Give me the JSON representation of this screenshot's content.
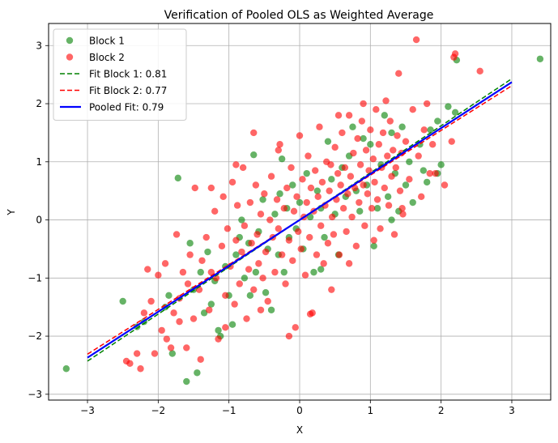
{
  "chart_data": {
    "type": "scatter",
    "title": "Verification of Pooled OLS as Weighted Average",
    "xlabel": "X",
    "ylabel": "Y",
    "xlim": [
      -3.55,
      3.55
    ],
    "ylim": [
      -3.1,
      3.38
    ],
    "xticks": [
      -3,
      -2,
      -1,
      0,
      1,
      2,
      3
    ],
    "yticks": [
      -3,
      -2,
      -1,
      0,
      1,
      2,
      3
    ],
    "grid": true,
    "legend_position": "top-left",
    "series": [
      {
        "name": "Block 1",
        "kind": "scatter",
        "color": "#008000",
        "points": [
          [
            -3.3,
            -2.56
          ],
          [
            -2.5,
            -1.4
          ],
          [
            -2.3,
            -1.84
          ],
          [
            -2.2,
            -1.75
          ],
          [
            -1.9,
            -1.5
          ],
          [
            -1.85,
            -1.3
          ],
          [
            -1.8,
            -2.3
          ],
          [
            -1.72,
            0.72
          ],
          [
            -1.6,
            -2.78
          ],
          [
            -1.45,
            -2.63
          ],
          [
            -1.5,
            -1.2
          ],
          [
            -1.4,
            -0.9
          ],
          [
            -1.35,
            -1.6
          ],
          [
            -1.3,
            -0.55
          ],
          [
            -1.25,
            -1.45
          ],
          [
            -1.2,
            -1.05
          ],
          [
            -1.15,
            -1.9
          ],
          [
            -1.12,
            -2.0
          ],
          [
            -1.05,
            -0.8
          ],
          [
            -1.0,
            -1.3
          ],
          [
            -0.95,
            -1.8
          ],
          [
            -0.9,
            -0.6
          ],
          [
            -0.85,
            -0.3
          ],
          [
            -0.82,
            0.0
          ],
          [
            -0.78,
            -1.0
          ],
          [
            -0.72,
            -0.4
          ],
          [
            -0.65,
            1.12
          ],
          [
            -0.62,
            -0.9
          ],
          [
            -0.58,
            -0.2
          ],
          [
            -0.52,
            0.35
          ],
          [
            -0.48,
            -1.25
          ],
          [
            -0.45,
            -0.5
          ],
          [
            -0.4,
            -1.55
          ],
          [
            -0.35,
            0.1
          ],
          [
            -0.3,
            -0.6
          ],
          [
            -0.28,
            0.45
          ],
          [
            -0.22,
            -0.9
          ],
          [
            -0.18,
            0.2
          ],
          [
            -0.15,
            -0.3
          ],
          [
            -0.1,
            0.6
          ],
          [
            -0.05,
            -0.15
          ],
          [
            0.0,
            0.3
          ],
          [
            0.05,
            -0.5
          ],
          [
            0.1,
            0.8
          ],
          [
            0.15,
            0.05
          ],
          [
            0.2,
            -0.9
          ],
          [
            0.25,
            0.5
          ],
          [
            0.3,
            0.2
          ],
          [
            0.35,
            -0.3
          ],
          [
            0.4,
            1.35
          ],
          [
            0.45,
            0.7
          ],
          [
            0.5,
            0.1
          ],
          [
            0.55,
            -0.6
          ],
          [
            0.6,
            0.9
          ],
          [
            0.65,
            0.4
          ],
          [
            0.7,
            1.1
          ],
          [
            0.75,
            1.6
          ],
          [
            0.8,
            0.5
          ],
          [
            0.85,
            0.15
          ],
          [
            0.9,
            1.4
          ],
          [
            0.95,
            0.6
          ],
          [
            1.0,
            1.3
          ],
          [
            1.05,
            -0.45
          ],
          [
            1.1,
            0.2
          ],
          [
            1.15,
            0.95
          ],
          [
            1.2,
            1.8
          ],
          [
            1.25,
            0.4
          ],
          [
            1.3,
            1.5
          ],
          [
            1.35,
            0.8
          ],
          [
            1.4,
            0.15
          ],
          [
            1.45,
            1.6
          ],
          [
            1.5,
            0.6
          ],
          [
            1.55,
            1.0
          ],
          [
            1.6,
            0.3
          ],
          [
            1.7,
            1.3
          ],
          [
            1.75,
            0.85
          ],
          [
            1.8,
            0.65
          ],
          [
            1.85,
            1.55
          ],
          [
            1.95,
            1.7
          ],
          [
            2.0,
            0.95
          ],
          [
            2.1,
            1.95
          ],
          [
            2.2,
            1.85
          ],
          [
            2.22,
            2.75
          ],
          [
            3.4,
            2.77
          ],
          [
            -1.55,
            -0.4
          ],
          [
            -0.7,
            -1.3
          ],
          [
            0.3,
            -0.85
          ],
          [
            1.3,
            0.0
          ],
          [
            -0.25,
            1.05
          ],
          [
            1.95,
            0.8
          ]
        ]
      },
      {
        "name": "Block 2",
        "kind": "scatter",
        "color": "#ff0000",
        "points": [
          [
            -2.45,
            -2.43
          ],
          [
            -2.4,
            -2.47
          ],
          [
            -2.3,
            -2.3
          ],
          [
            -2.25,
            -2.56
          ],
          [
            -2.2,
            -1.6
          ],
          [
            -2.15,
            -0.85
          ],
          [
            -2.1,
            -1.4
          ],
          [
            -2.05,
            -2.3
          ],
          [
            -1.95,
            -1.9
          ],
          [
            -1.9,
            -0.75
          ],
          [
            -1.88,
            -2.05
          ],
          [
            -1.82,
            -2.2
          ],
          [
            -1.78,
            -1.6
          ],
          [
            -1.74,
            -0.25
          ],
          [
            -1.7,
            -1.35
          ],
          [
            -1.65,
            -0.9
          ],
          [
            -1.6,
            -2.2
          ],
          [
            -1.58,
            -1.1
          ],
          [
            -1.55,
            -0.6
          ],
          [
            -1.5,
            -1.7
          ],
          [
            -1.48,
            0.55
          ],
          [
            -1.42,
            -1.2
          ],
          [
            -1.4,
            -2.4
          ],
          [
            -1.38,
            -0.7
          ],
          [
            -1.32,
            -0.3
          ],
          [
            -1.28,
            -1.55
          ],
          [
            -1.25,
            -0.9
          ],
          [
            -1.2,
            0.15
          ],
          [
            -1.18,
            -1.0
          ],
          [
            -1.15,
            -2.05
          ],
          [
            -1.1,
            -0.45
          ],
          [
            -1.08,
            0.4
          ],
          [
            -1.05,
            -1.3
          ],
          [
            -1.02,
            -0.15
          ],
          [
            -0.98,
            -0.8
          ],
          [
            -0.95,
            0.65
          ],
          [
            -0.92,
            -1.45
          ],
          [
            -0.9,
            -0.35
          ],
          [
            -0.88,
            0.25
          ],
          [
            -0.85,
            -1.1
          ],
          [
            -0.82,
            -0.55
          ],
          [
            -0.8,
            0.9
          ],
          [
            -0.78,
            -0.1
          ],
          [
            -0.75,
            -1.7
          ],
          [
            -0.72,
            -0.85
          ],
          [
            -0.7,
            0.3
          ],
          [
            -0.68,
            -0.4
          ],
          [
            -0.65,
            -1.2
          ],
          [
            -0.62,
            0.6
          ],
          [
            -0.6,
            -0.25
          ],
          [
            -0.58,
            -0.75
          ],
          [
            -0.55,
            0.1
          ],
          [
            -0.52,
            -1.0
          ],
          [
            -0.5,
            0.45
          ],
          [
            -0.48,
            -0.55
          ],
          [
            -0.45,
            -1.4
          ],
          [
            -0.42,
            0.0
          ],
          [
            -0.4,
            0.75
          ],
          [
            -0.38,
            -0.3
          ],
          [
            -0.35,
            -0.9
          ],
          [
            -0.32,
            0.35
          ],
          [
            -0.3,
            -0.15
          ],
          [
            -0.28,
            1.3
          ],
          [
            -0.25,
            -0.6
          ],
          [
            -0.22,
            0.2
          ],
          [
            -0.2,
            -1.1
          ],
          [
            -0.18,
            0.55
          ],
          [
            -0.15,
            -0.35
          ],
          [
            -0.12,
            0.9
          ],
          [
            -0.1,
            -0.7
          ],
          [
            -0.08,
            0.15
          ],
          [
            -0.06,
            -1.85
          ],
          [
            -0.04,
            0.4
          ],
          [
            -0.02,
            -0.2
          ],
          [
            0.0,
            1.45
          ],
          [
            0.02,
            -0.5
          ],
          [
            0.04,
            0.7
          ],
          [
            0.06,
            0.05
          ],
          [
            0.08,
            -0.95
          ],
          [
            0.1,
            0.3
          ],
          [
            0.12,
            1.1
          ],
          [
            0.14,
            -0.3
          ],
          [
            0.16,
            0.55
          ],
          [
            0.18,
            -1.6
          ],
          [
            0.2,
            0.15
          ],
          [
            0.22,
            0.85
          ],
          [
            0.24,
            -0.6
          ],
          [
            0.26,
            0.4
          ],
          [
            0.28,
            1.6
          ],
          [
            0.3,
            -0.1
          ],
          [
            0.32,
            0.65
          ],
          [
            0.34,
            -0.75
          ],
          [
            0.36,
            0.25
          ],
          [
            0.38,
            1.0
          ],
          [
            0.4,
            -0.4
          ],
          [
            0.42,
            0.5
          ],
          [
            0.44,
            0.95
          ],
          [
            0.46,
            0.05
          ],
          [
            0.48,
            -0.25
          ],
          [
            0.5,
            1.25
          ],
          [
            0.52,
            0.35
          ],
          [
            0.54,
            0.8
          ],
          [
            0.56,
            -0.6
          ],
          [
            0.58,
            0.6
          ],
          [
            0.6,
            1.5
          ],
          [
            0.62,
            0.2
          ],
          [
            0.64,
            0.9
          ],
          [
            0.66,
            -0.2
          ],
          [
            0.68,
            0.45
          ],
          [
            0.7,
            1.8
          ],
          [
            0.72,
            0.75
          ],
          [
            0.74,
            0.05
          ],
          [
            0.76,
            1.15
          ],
          [
            0.78,
            0.55
          ],
          [
            0.8,
            -0.45
          ],
          [
            0.82,
            1.4
          ],
          [
            0.84,
            0.3
          ],
          [
            0.86,
            0.95
          ],
          [
            0.88,
            1.7
          ],
          [
            0.9,
            0.6
          ],
          [
            0.92,
            -0.1
          ],
          [
            0.94,
            1.2
          ],
          [
            0.96,
            0.45
          ],
          [
            0.98,
            0.85
          ],
          [
            1.0,
            1.55
          ],
          [
            1.02,
            0.2
          ],
          [
            1.04,
            1.05
          ],
          [
            1.06,
            0.65
          ],
          [
            1.08,
            1.9
          ],
          [
            1.1,
            0.35
          ],
          [
            1.12,
            1.3
          ],
          [
            1.14,
            -0.15
          ],
          [
            1.16,
            0.9
          ],
          [
            1.18,
            1.5
          ],
          [
            1.2,
            0.55
          ],
          [
            1.22,
            2.05
          ],
          [
            1.24,
            1.1
          ],
          [
            1.26,
            0.25
          ],
          [
            1.28,
            1.7
          ],
          [
            1.3,
            0.75
          ],
          [
            1.32,
            1.2
          ],
          [
            1.34,
            -0.25
          ],
          [
            1.36,
            0.9
          ],
          [
            1.38,
            1.45
          ],
          [
            1.4,
            2.52
          ],
          [
            1.42,
            0.5
          ],
          [
            1.44,
            1.15
          ],
          [
            1.46,
            0.1
          ],
          [
            1.5,
            1.35
          ],
          [
            1.55,
            0.7
          ],
          [
            1.6,
            1.9
          ],
          [
            1.65,
            3.1
          ],
          [
            1.68,
            1.1
          ],
          [
            1.72,
            0.4
          ],
          [
            1.76,
            1.55
          ],
          [
            1.8,
            2.0
          ],
          [
            1.84,
            0.8
          ],
          [
            1.88,
            1.3
          ],
          [
            1.92,
            0.8
          ],
          [
            2.05,
            0.6
          ],
          [
            2.15,
            1.35
          ],
          [
            2.18,
            2.8
          ],
          [
            2.2,
            2.86
          ],
          [
            2.55,
            2.56
          ],
          [
            -0.15,
            -2.0
          ],
          [
            0.15,
            -1.62
          ],
          [
            -1.05,
            -1.85
          ],
          [
            -0.55,
            -1.55
          ],
          [
            -1.7,
            -1.75
          ],
          [
            -2.0,
            -0.95
          ],
          [
            -0.3,
            1.2
          ],
          [
            -0.65,
            1.5
          ],
          [
            0.55,
            1.8
          ],
          [
            0.9,
            2.0
          ],
          [
            -1.25,
            0.55
          ],
          [
            -0.9,
            0.95
          ],
          [
            0.45,
            -1.2
          ],
          [
            0.7,
            -0.75
          ],
          [
            1.05,
            -0.35
          ],
          [
            1.45,
            0.2
          ]
        ]
      },
      {
        "name": "Fit Block 1: 0.81",
        "kind": "line",
        "style": "dashed",
        "color": "#008000",
        "x": [
          -3,
          3
        ],
        "y": [
          -2.43,
          2.43
        ]
      },
      {
        "name": "Fit Block 2: 0.77",
        "kind": "line",
        "style": "dashed",
        "color": "#ff0000",
        "x": [
          -3,
          3
        ],
        "y": [
          -2.31,
          2.31
        ]
      },
      {
        "name": "Pooled Fit: 0.79",
        "kind": "line",
        "style": "solid",
        "color": "#0000ff",
        "x": [
          -3,
          3
        ],
        "y": [
          -2.37,
          2.37
        ]
      }
    ]
  }
}
